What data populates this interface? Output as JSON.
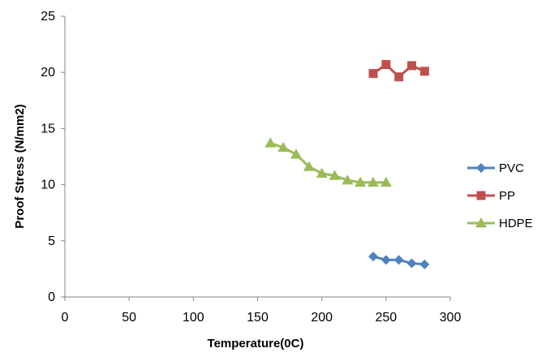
{
  "chart_data": {
    "type": "line",
    "title": "",
    "xlabel": "Temperature(0C)",
    "ylabel": "Proof  Stress (N/mm2)",
    "xlim": [
      0,
      300
    ],
    "ylim": [
      0,
      25
    ],
    "xticks": [
      0,
      50,
      100,
      150,
      200,
      250,
      300
    ],
    "yticks": [
      0,
      5,
      10,
      15,
      20,
      25
    ],
    "x_tick_labels": [
      "0",
      "50",
      "100",
      "150",
      "200",
      "250",
      "300"
    ],
    "y_tick_labels": [
      "0",
      "5",
      "10",
      "15",
      "20",
      "25"
    ],
    "grid": false,
    "legend_position": "right",
    "series": [
      {
        "name": "PVC",
        "color": "#4f81bd",
        "marker": "diamond",
        "x": [
          240,
          250,
          260,
          270,
          280
        ],
        "y": [
          3.6,
          3.3,
          3.3,
          3.0,
          2.9
        ]
      },
      {
        "name": "PP",
        "color": "#c0504d",
        "marker": "square",
        "x": [
          240,
          250,
          260,
          270,
          280
        ],
        "y": [
          19.9,
          20.7,
          19.6,
          20.6,
          20.1
        ]
      },
      {
        "name": "HDPE",
        "color": "#9bbb59",
        "marker": "triangle",
        "x": [
          160,
          170,
          180,
          190,
          200,
          210,
          220,
          230,
          240,
          250
        ],
        "y": [
          13.7,
          13.3,
          12.7,
          11.6,
          11.0,
          10.8,
          10.4,
          10.2,
          10.2,
          10.2
        ]
      }
    ]
  }
}
